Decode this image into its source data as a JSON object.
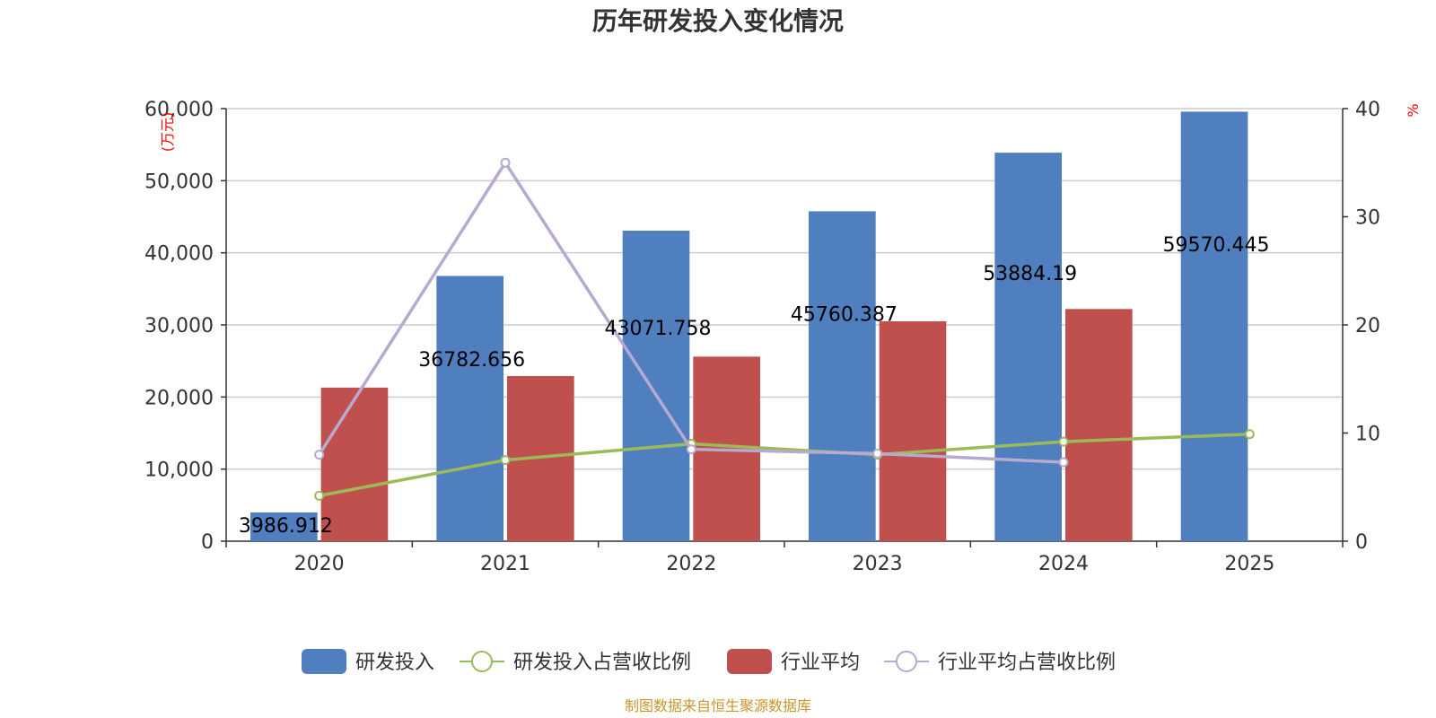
{
  "chart_data": {
    "type": "bar",
    "title": "历年研发投入变化情况",
    "categories": [
      "2020",
      "2021",
      "2022",
      "2023",
      "2024",
      "2025"
    ],
    "y_left": {
      "unit": "(万元)",
      "range": [
        0,
        60000
      ],
      "ticks": [
        "0",
        "10,000",
        "20,000",
        "30,000",
        "40,000",
        "50,000",
        "60,000"
      ]
    },
    "y_right": {
      "unit": "%",
      "range": [
        0,
        40
      ],
      "ticks": [
        "0",
        "10",
        "20",
        "30",
        "40"
      ]
    },
    "grid": true,
    "legend_position": "bottom",
    "series": [
      {
        "name": "研发投入",
        "kind": "bar",
        "axis": "left",
        "color": "#4f7fbf",
        "values": [
          3986.912,
          36782.656,
          43071.758,
          45760.387,
          53884.19,
          59570.445
        ],
        "labels": [
          "3986.912",
          "36782.656",
          "43071.758",
          "45760.387",
          "53884.19",
          "59570.445"
        ]
      },
      {
        "name": "研发投入占营收比例",
        "kind": "line",
        "axis": "right",
        "color": "#9bbb59",
        "values": [
          4.2,
          7.5,
          9.0,
          8.0,
          9.2,
          9.9
        ]
      },
      {
        "name": "行业平均",
        "kind": "bar",
        "axis": "left",
        "color": "#c0504d",
        "values": [
          21300,
          22900,
          25600,
          30500,
          32200,
          null
        ]
      },
      {
        "name": "行业平均占营收比例",
        "kind": "line",
        "axis": "right",
        "color": "#b7a9d0",
        "values": [
          8.0,
          35.0,
          8.5,
          8.1,
          7.3,
          null
        ]
      }
    ]
  },
  "source_note": "制图数据来自恒生聚源数据库"
}
